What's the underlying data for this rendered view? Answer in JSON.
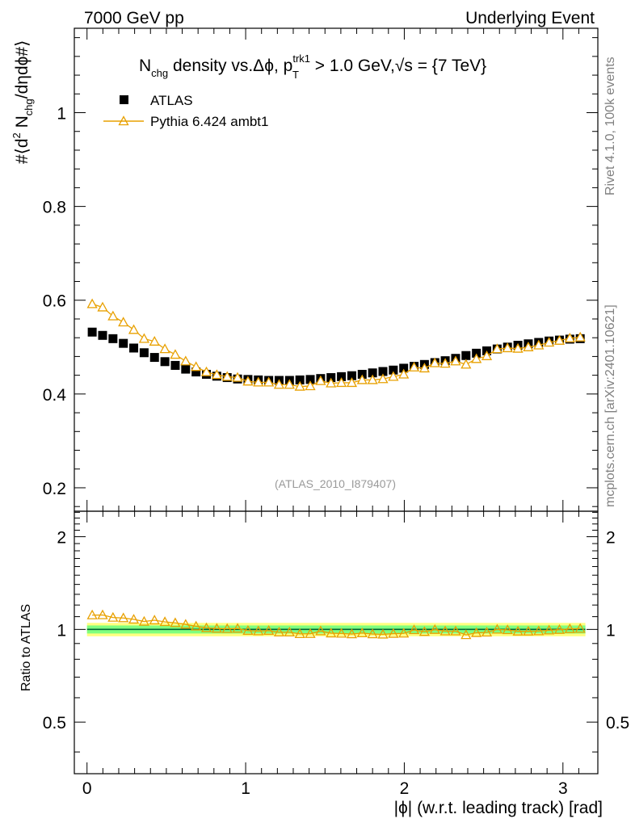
{
  "header": {
    "left": "7000 GeV pp",
    "right": "Underlying Event"
  },
  "plot_title": {
    "n": "N",
    "chg_sub": "chg",
    "mid": " density vs.Δϕ, p",
    "trk1_sup": "trk1",
    "t_sub": "T",
    "tail": " > 1.0 GeV,",
    "sqrt": "√",
    "s_tail": "s = {7 TeV}"
  },
  "ylabel_main": {
    "a": "#⟨d",
    "two": "2",
    "b": " N",
    "chg": "chg",
    "c": "/dηdϕ#⟩"
  },
  "ylabel_ratio": "Ratio to ATLAS",
  "xlabel": "|ϕ| (w.r.t. leading track) [rad]",
  "analysis_id": "(ATLAS_2010_I879407)",
  "side_text": {
    "rivet": "Rivet 4.1.0,  100k events",
    "mcplots": "mcplots.cern.ch [arXiv:2401.10621]"
  },
  "legend": {
    "data_label": "ATLAS",
    "mc_label": "Pythia 6.424 ambt1"
  },
  "colors": {
    "data": "#000000",
    "mc": "#e8a000",
    "band_inner": "#7fff7f",
    "band_outer": "#ffff80",
    "ratio_line": "#006633"
  },
  "chart_data": {
    "type": "scatter",
    "x_range": [
      -0.08,
      3.22
    ],
    "main_ylim": [
      0.15,
      1.18
    ],
    "ratio_ylim": [
      0.34,
      2.42
    ],
    "main_yticks": [
      0.2,
      0.4,
      0.6,
      0.8,
      1
    ],
    "main_ytick_labels": [
      "0.2",
      "0.4",
      "0.6",
      "0.8",
      "1"
    ],
    "ratio_yticks": [
      0.5,
      1,
      2
    ],
    "ratio_ytick_labels": [
      "0.5",
      "1",
      "2"
    ],
    "xticks": [
      0,
      1,
      2,
      3
    ],
    "xtick_labels": [
      "0",
      "1",
      "2",
      "3"
    ],
    "x": [
      0.0327,
      0.0982,
      0.1636,
      0.2291,
      0.2945,
      0.36,
      0.4254,
      0.4909,
      0.5563,
      0.6218,
      0.6872,
      0.7527,
      0.8181,
      0.8836,
      0.949,
      1.0145,
      1.0799,
      1.1454,
      1.2108,
      1.2763,
      1.3417,
      1.4072,
      1.4726,
      1.5381,
      1.6035,
      1.669,
      1.7344,
      1.7999,
      1.8653,
      1.9308,
      1.9962,
      2.0617,
      2.1271,
      2.1926,
      2.258,
      2.3235,
      2.3889,
      2.4544,
      2.5198,
      2.5853,
      2.6507,
      2.7162,
      2.7816,
      2.8471,
      2.9125,
      2.978,
      3.0434,
      3.1089
    ],
    "series": [
      {
        "name": "ATLAS",
        "marker": "square",
        "values": [
          0.532,
          0.525,
          0.518,
          0.508,
          0.498,
          0.488,
          0.478,
          0.469,
          0.461,
          0.453,
          0.447,
          0.442,
          0.438,
          0.435,
          0.432,
          0.431,
          0.43,
          0.429,
          0.429,
          0.429,
          0.43,
          0.431,
          0.433,
          0.435,
          0.437,
          0.439,
          0.442,
          0.445,
          0.448,
          0.451,
          0.455,
          0.459,
          0.463,
          0.467,
          0.471,
          0.476,
          0.482,
          0.487,
          0.492,
          0.496,
          0.5,
          0.504,
          0.507,
          0.51,
          0.513,
          0.515,
          0.517,
          0.518
        ]
      },
      {
        "name": "Pythia 6.424 ambt1",
        "marker": "open-triangle",
        "values": [
          0.592,
          0.585,
          0.566,
          0.553,
          0.537,
          0.518,
          0.512,
          0.496,
          0.484,
          0.47,
          0.458,
          0.447,
          0.441,
          0.437,
          0.435,
          0.427,
          0.425,
          0.425,
          0.42,
          0.42,
          0.416,
          0.417,
          0.428,
          0.423,
          0.424,
          0.424,
          0.43,
          0.43,
          0.432,
          0.437,
          0.442,
          0.457,
          0.455,
          0.466,
          0.465,
          0.47,
          0.463,
          0.475,
          0.481,
          0.496,
          0.498,
          0.497,
          0.5,
          0.504,
          0.51,
          0.514,
          0.519,
          0.521
        ]
      }
    ],
    "ratio_values": [
      1.113,
      1.114,
      1.093,
      1.089,
      1.078,
      1.061,
      1.071,
      1.058,
      1.05,
      1.038,
      1.024,
      1.011,
      1.007,
      1.005,
      1.007,
      0.991,
      0.988,
      0.991,
      0.979,
      0.979,
      0.967,
      0.968,
      0.988,
      0.972,
      0.97,
      0.966,
      0.973,
      0.966,
      0.964,
      0.969,
      0.971,
      0.996,
      0.983,
      0.998,
      0.987,
      0.987,
      0.96,
      0.975,
      0.978,
      1.0,
      0.996,
      0.986,
      0.986,
      0.988,
      0.994,
      0.998,
      1.004,
      1.006
    ]
  }
}
